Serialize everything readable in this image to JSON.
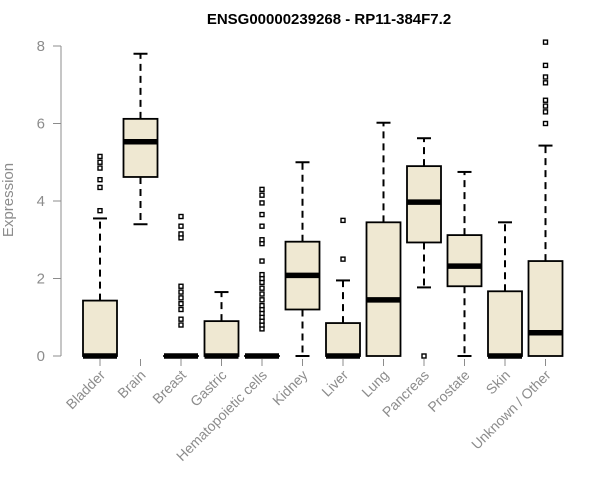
{
  "chart_data": {
    "type": "boxplot",
    "title": "ENSG00000239268 - RP11-384F7.2",
    "xlabel": "",
    "ylabel": "Expression",
    "ylim": [
      0,
      8.1
    ],
    "yticks": [
      0,
      2,
      4,
      6,
      8
    ],
    "grid": false,
    "legend": "none",
    "colors": {
      "box_fill": "#efe8d2",
      "box_stroke": "#000000",
      "axis": "#8c8c8c",
      "label": "#8c8c8c"
    },
    "categories": [
      "Bladder",
      "Brain",
      "Breast",
      "Gastric",
      "Hematopoietic cells",
      "Kidney",
      "Liver",
      "Lung",
      "Pancreas",
      "Prostate",
      "Skin",
      "Unknown / Other"
    ],
    "boxes": [
      {
        "q1": 0,
        "median": 0,
        "q3": 1.43,
        "whisker_low": 0,
        "whisker_high": 3.55,
        "outliers": [
          3.75,
          4.35,
          4.55,
          4.85,
          5.0,
          5.15
        ]
      },
      {
        "q1": 4.62,
        "median": 5.53,
        "q3": 6.12,
        "whisker_low": 3.4,
        "whisker_high": 7.8,
        "outliers": []
      },
      {
        "q1": 0,
        "median": 0,
        "q3": 0,
        "whisker_low": 0,
        "whisker_high": 0,
        "outliers": [
          0.8,
          0.95,
          1.2,
          1.35,
          1.5,
          1.65,
          1.8,
          3.05,
          3.15,
          3.35,
          3.6
        ]
      },
      {
        "q1": 0,
        "median": 0,
        "q3": 0.9,
        "whisker_low": 0,
        "whisker_high": 1.65,
        "outliers": []
      },
      {
        "q1": 0,
        "median": 0,
        "q3": 0,
        "whisker_low": 0,
        "whisker_high": 0,
        "outliers": [
          0.7,
          0.8,
          0.9,
          1.0,
          1.1,
          1.2,
          1.3,
          1.45,
          1.6,
          1.75,
          1.9,
          2.0,
          2.1,
          2.45,
          2.9,
          3.0,
          3.35,
          3.65,
          3.95,
          4.15,
          4.3
        ]
      },
      {
        "q1": 1.2,
        "median": 2.08,
        "q3": 2.95,
        "whisker_low": 0,
        "whisker_high": 5.0,
        "outliers": []
      },
      {
        "q1": 0,
        "median": 0,
        "q3": 0.85,
        "whisker_low": 0,
        "whisker_high": 1.95,
        "outliers": [
          2.5,
          3.5
        ]
      },
      {
        "q1": 0,
        "median": 1.45,
        "q3": 3.45,
        "whisker_low": 0,
        "whisker_high": 6.02,
        "outliers": []
      },
      {
        "q1": 2.93,
        "median": 3.97,
        "q3": 4.9,
        "whisker_low": 1.77,
        "whisker_high": 5.62,
        "outliers": [
          0
        ]
      },
      {
        "q1": 1.8,
        "median": 2.32,
        "q3": 3.12,
        "whisker_low": 0,
        "whisker_high": 4.75,
        "outliers": []
      },
      {
        "q1": 0,
        "median": 0,
        "q3": 1.67,
        "whisker_low": 0,
        "whisker_high": 3.45,
        "outliers": []
      },
      {
        "q1": 0,
        "median": 0.6,
        "q3": 2.45,
        "whisker_low": 0,
        "whisker_high": 5.43,
        "outliers": [
          6.0,
          6.3,
          6.45,
          6.6,
          7.05,
          7.2,
          7.5,
          8.1
        ]
      }
    ]
  }
}
